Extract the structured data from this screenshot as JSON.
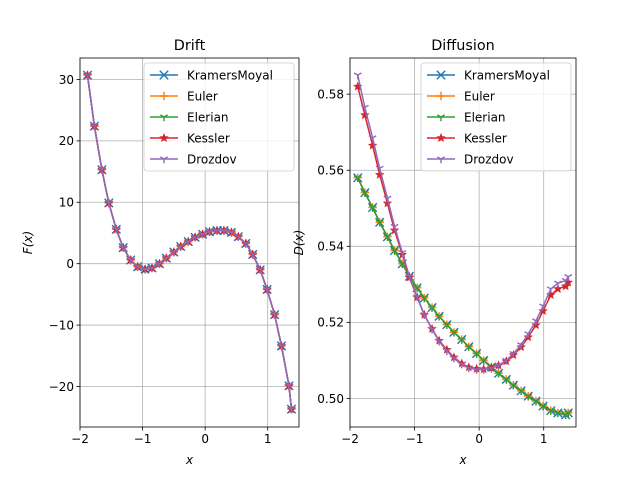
{
  "chart_data": [
    {
      "type": "line",
      "title": "Drift",
      "xlabel": "x",
      "ylabel": "F(x)",
      "xlim": [
        -2.0,
        1.5
      ],
      "ylim": [
        -26.6,
        33.5
      ],
      "xticks": [
        -2,
        -1,
        0,
        1
      ],
      "yticks": [
        -20,
        -10,
        0,
        10,
        20,
        30
      ],
      "grid": true,
      "legend_position": "top-right",
      "x": [
        -1.88,
        -1.77,
        -1.65,
        -1.54,
        -1.42,
        -1.31,
        -1.19,
        -1.08,
        -0.96,
        -0.85,
        -0.73,
        -0.62,
        -0.5,
        -0.39,
        -0.27,
        -0.16,
        -0.04,
        0.07,
        0.19,
        0.3,
        0.42,
        0.53,
        0.65,
        0.76,
        0.88,
        0.99,
        1.11,
        1.22,
        1.34,
        1.38
      ],
      "series": [
        {
          "name": "KramersMoyal",
          "color": "#1f77b4",
          "marker": "x",
          "values": [
            30.7,
            22.4,
            15.3,
            9.9,
            5.6,
            2.6,
            0.6,
            -0.5,
            -0.9,
            -0.7,
            0.0,
            0.9,
            1.9,
            2.8,
            3.6,
            4.3,
            4.8,
            5.2,
            5.4,
            5.4,
            5.1,
            4.4,
            3.3,
            1.5,
            -1.0,
            -4.2,
            -8.3,
            -13.4,
            -19.9,
            -23.7
          ]
        },
        {
          "name": "Euler",
          "color": "#ff7f0e",
          "marker": "+",
          "values": [
            30.7,
            22.4,
            15.3,
            9.9,
            5.6,
            2.6,
            0.6,
            -0.5,
            -0.9,
            -0.7,
            0.0,
            0.9,
            1.9,
            2.8,
            3.6,
            4.3,
            4.8,
            5.2,
            5.4,
            5.4,
            5.1,
            4.4,
            3.3,
            1.5,
            -1.0,
            -4.2,
            -8.3,
            -13.4,
            -19.9,
            -23.7
          ]
        },
        {
          "name": "Elerian",
          "color": "#2ca02c",
          "marker": "tri_down",
          "values": [
            30.7,
            22.4,
            15.3,
            9.9,
            5.6,
            2.6,
            0.6,
            -0.5,
            -0.9,
            -0.7,
            0.0,
            0.9,
            1.9,
            2.8,
            3.6,
            4.3,
            4.8,
            5.2,
            5.4,
            5.4,
            5.1,
            4.4,
            3.3,
            1.5,
            -1.0,
            -4.2,
            -8.3,
            -13.4,
            -19.9,
            -23.7
          ]
        },
        {
          "name": "Kessler",
          "color": "#d62728",
          "marker": "*",
          "values": [
            30.7,
            22.4,
            15.3,
            9.9,
            5.6,
            2.6,
            0.6,
            -0.5,
            -0.9,
            -0.7,
            0.0,
            0.9,
            1.9,
            2.8,
            3.6,
            4.3,
            4.8,
            5.2,
            5.4,
            5.4,
            5.1,
            4.4,
            3.3,
            1.5,
            -1.0,
            -4.2,
            -8.3,
            -13.4,
            -19.9,
            -23.7
          ]
        },
        {
          "name": "Drozdov",
          "color": "#9467bd",
          "marker": "1",
          "values": [
            30.7,
            22.4,
            15.3,
            9.9,
            5.6,
            2.6,
            0.6,
            -0.5,
            -0.9,
            -0.7,
            0.0,
            0.9,
            1.9,
            2.8,
            3.6,
            4.3,
            4.8,
            5.2,
            5.4,
            5.4,
            5.1,
            4.4,
            3.3,
            1.5,
            -1.0,
            -4.2,
            -8.3,
            -13.4,
            -19.9,
            -23.7
          ]
        }
      ]
    },
    {
      "type": "line",
      "title": "Diffusion",
      "xlabel": "x",
      "ylabel": "D(x)",
      "xlim": [
        -2.0,
        1.5
      ],
      "ylim": [
        0.4925,
        0.5895
      ],
      "xticks": [
        -2,
        -1,
        0,
        1
      ],
      "yticks": [
        0.5,
        0.52,
        0.54,
        0.56,
        0.58
      ],
      "grid": true,
      "legend_position": "top-right",
      "x": [
        -1.88,
        -1.77,
        -1.65,
        -1.54,
        -1.42,
        -1.31,
        -1.19,
        -1.08,
        -0.96,
        -0.85,
        -0.73,
        -0.62,
        -0.5,
        -0.39,
        -0.27,
        -0.16,
        -0.04,
        0.07,
        0.19,
        0.3,
        0.42,
        0.53,
        0.65,
        0.76,
        0.88,
        0.99,
        1.11,
        1.22,
        1.34,
        1.38
      ],
      "series": [
        {
          "name": "KramersMoyal",
          "color": "#1f77b4",
          "marker": "x",
          "values": [
            0.558,
            0.5541,
            0.5502,
            0.5463,
            0.5425,
            0.5389,
            0.5354,
            0.5321,
            0.5291,
            0.5264,
            0.5239,
            0.5216,
            0.5194,
            0.5174,
            0.5155,
            0.5136,
            0.5118,
            0.51,
            0.5083,
            0.5066,
            0.505,
            0.5035,
            0.502,
            0.5006,
            0.4993,
            0.498,
            0.4968,
            0.4962,
            0.4957,
            0.4962
          ]
        },
        {
          "name": "Euler",
          "color": "#ff7f0e",
          "marker": "+",
          "values": [
            0.558,
            0.5541,
            0.5502,
            0.5463,
            0.5425,
            0.5389,
            0.5354,
            0.5321,
            0.5291,
            0.5264,
            0.5239,
            0.5216,
            0.5194,
            0.5174,
            0.5155,
            0.5136,
            0.5118,
            0.51,
            0.5083,
            0.5066,
            0.505,
            0.5035,
            0.502,
            0.5006,
            0.4993,
            0.498,
            0.4968,
            0.4962,
            0.4957,
            0.4962
          ]
        },
        {
          "name": "Elerian",
          "color": "#2ca02c",
          "marker": "tri_down",
          "values": [
            0.558,
            0.5541,
            0.5502,
            0.5463,
            0.5425,
            0.5389,
            0.5354,
            0.5321,
            0.5291,
            0.5264,
            0.5239,
            0.5216,
            0.5194,
            0.5174,
            0.5155,
            0.5136,
            0.5118,
            0.51,
            0.5083,
            0.5066,
            0.505,
            0.5035,
            0.502,
            0.5006,
            0.4993,
            0.498,
            0.4968,
            0.4962,
            0.4957,
            0.4962
          ]
        },
        {
          "name": "Kessler",
          "color": "#d62728",
          "marker": "*",
          "values": [
            0.582,
            0.5745,
            0.5665,
            0.5588,
            0.5513,
            0.5442,
            0.5378,
            0.5318,
            0.5266,
            0.522,
            0.5183,
            0.5152,
            0.5128,
            0.5108,
            0.5092,
            0.5082,
            0.5078,
            0.5077,
            0.508,
            0.5087,
            0.5098,
            0.5114,
            0.5135,
            0.5161,
            0.5193,
            0.523,
            0.5272,
            0.5288,
            0.5295,
            0.5305
          ]
        },
        {
          "name": "Drozdov",
          "color": "#9467bd",
          "marker": "1",
          "values": [
            0.585,
            0.5765,
            0.5685,
            0.5605,
            0.5526,
            0.5452,
            0.5383,
            0.5321,
            0.5267,
            0.522,
            0.5182,
            0.515,
            0.5125,
            0.5106,
            0.509,
            0.508,
            0.5076,
            0.5076,
            0.5079,
            0.5087,
            0.51,
            0.5118,
            0.5141,
            0.517,
            0.5204,
            0.5243,
            0.5288,
            0.5303,
            0.531,
            0.532
          ]
        }
      ]
    }
  ]
}
